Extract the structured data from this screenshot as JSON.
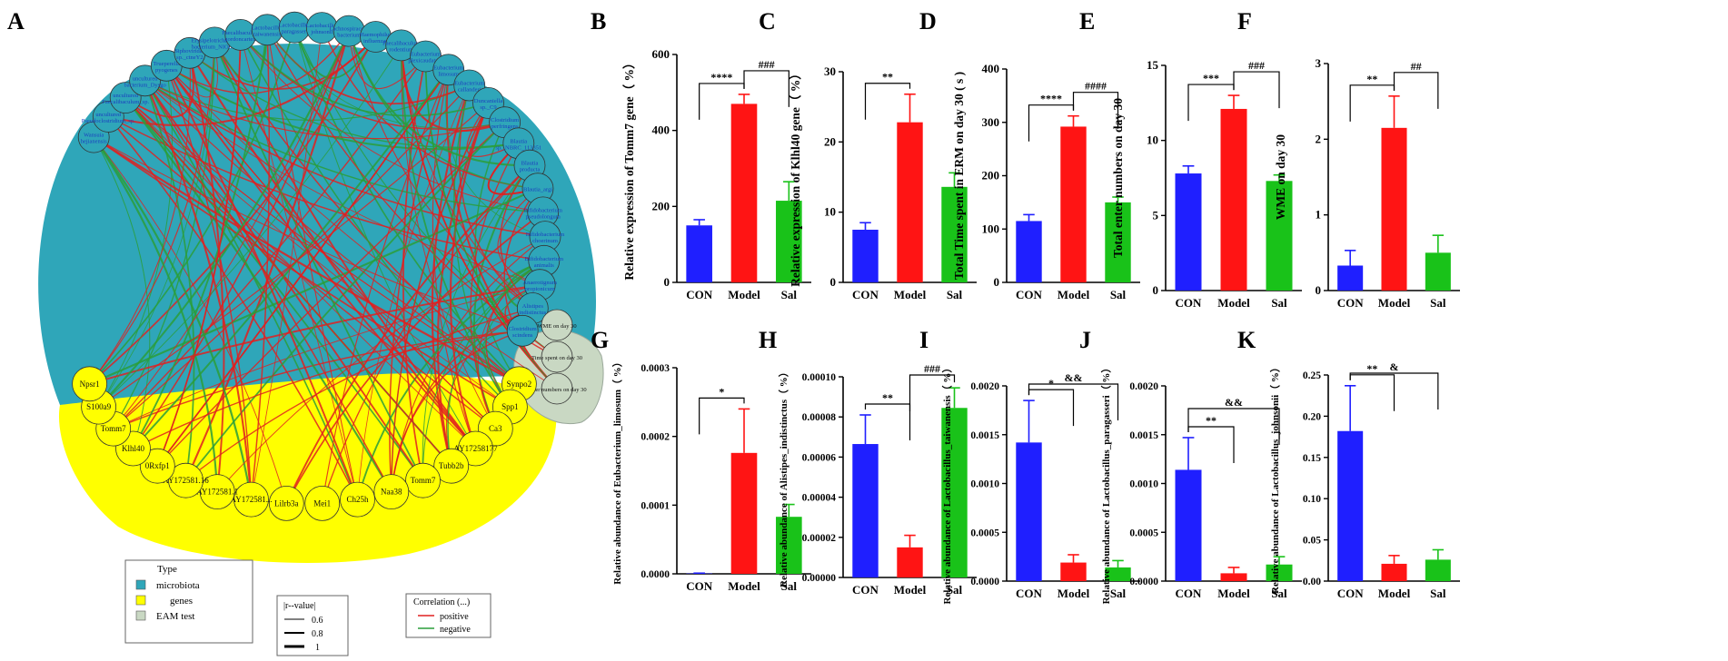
{
  "panel_a": {
    "letter": "A",
    "microbiota_nodes": [
      "Wansuia_hejianensis",
      "uncultured_Pseudoclostridium_sp.",
      "uncultured_Faecalibaculum_sp.",
      "uncultured_bacterium_Dysgo",
      "Trueperella_pyogenes",
      "Siphoviridae_sp._ctneY2",
      "Erysipelotrichaceae_bacterium_NIOo42",
      "Faecalibaculum_gordoncarteri",
      "Lactobacillus_taiwanensis",
      "Lactobacillus_paragasseri",
      "Lactobacillus_johnsonii",
      "Lachnospiraceae_bacterium",
      "Haemophilus_influenzae",
      "Faecalibaculum_rodentium",
      "Eubacterium_plexicaudatum",
      "Eubacterium_limosum",
      "Eubacterium_callanderi",
      "Duncaniella_sp._C9",
      "Clostridium_perfringens",
      "Blautia_sp._NBRC_113351",
      "Blautia_producta",
      "Blautia_argi",
      "Bifidobacterium_pseudolongum",
      "Bifidobacterium_choerinum",
      "Bifidobacterium_animalis",
      "Anaerotignum_propionicum",
      "Alistipes_indistinctus",
      "Clostridium_scindens"
    ],
    "test_nodes": [
      "WME on day 30",
      "Time spent on day 30",
      "Enter numbers on day 30"
    ],
    "gene_nodes": [
      "Synpo2",
      "Spp1",
      "Ca3",
      "AY17258177",
      "Tubb2b",
      "Tomm7",
      "Naa38",
      "Ch25h",
      "Mei1",
      "Lilrb3a",
      "AY172581...",
      "AY172581.1",
      "AY172581.16",
      "0Rxfp1",
      "Klhl40",
      "Tomm7",
      "S100a9",
      "Npsr1"
    ],
    "legend_type": {
      "title": "Type",
      "items": [
        "microbiota",
        "genes",
        "EAM test"
      ],
      "colors": [
        "#2fa6b9",
        "#ffff00",
        "#c9d8c3"
      ]
    },
    "legend_r": {
      "title": "|r--value|",
      "items": [
        "0.6",
        "0.8",
        "1"
      ]
    },
    "legend_corr": {
      "title": "Correlation (...)",
      "items": [
        "positive",
        "negative"
      ],
      "colors": [
        "#e02020",
        "#2a9d3a"
      ]
    }
  },
  "chart_data": [
    {
      "id": "B",
      "type": "bar",
      "categories": [
        "CON",
        "Model",
        "Sal"
      ],
      "values": [
        150,
        470,
        215
      ],
      "errors": [
        15,
        25,
        50
      ],
      "ylabel": "Relative expression of Tomm7 gene（ %）",
      "ylim": [
        0,
        600
      ],
      "yticks": [
        "0",
        "200",
        "400",
        "600"
      ],
      "sig": [
        {
          "from": 0,
          "to": 1,
          "label": "****"
        },
        {
          "from": 1,
          "to": 2,
          "label": "###"
        }
      ]
    },
    {
      "id": "C",
      "type": "bar",
      "categories": [
        "CON",
        "Model",
        "Sal"
      ],
      "values": [
        7.5,
        22.8,
        13.6
      ],
      "errors": [
        1,
        4,
        2
      ],
      "ylabel": "Relative expression of Klhl40 gene（ %）",
      "ylim": [
        0,
        30
      ],
      "yticks": [
        "0",
        "10",
        "20",
        "30"
      ],
      "sig": [
        {
          "from": 0,
          "to": 1,
          "label": "**"
        }
      ]
    },
    {
      "id": "D",
      "type": "bar",
      "categories": [
        "CON",
        "Model",
        "Sal"
      ],
      "values": [
        115,
        292,
        150
      ],
      "errors": [
        12,
        20,
        10
      ],
      "ylabel": "Total Time spent in ERM on day 30 ( s )",
      "ylim": [
        0,
        400
      ],
      "yticks": [
        "0",
        "100",
        "200",
        "300",
        "400"
      ],
      "sig": [
        {
          "from": 0,
          "to": 1,
          "label": "****"
        },
        {
          "from": 1,
          "to": 2,
          "label": "####"
        }
      ]
    },
    {
      "id": "E",
      "type": "bar",
      "categories": [
        "CON",
        "Model",
        "Sal"
      ],
      "values": [
        7.8,
        12.1,
        7.3
      ],
      "errors": [
        0.5,
        0.9,
        0.4
      ],
      "ylabel": "Total enter numbers on day 30",
      "ylim": [
        0,
        15
      ],
      "yticks": [
        "0",
        "5",
        "10",
        "15"
      ],
      "sig": [
        {
          "from": 0,
          "to": 1,
          "label": "***"
        },
        {
          "from": 1,
          "to": 2,
          "label": "###"
        }
      ]
    },
    {
      "id": "F",
      "type": "bar",
      "categories": [
        "CON",
        "Model",
        "Sal"
      ],
      "values": [
        0.33,
        2.15,
        0.5
      ],
      "errors": [
        0.2,
        0.42,
        0.23
      ],
      "ylabel": "WME on day 30",
      "ylim": [
        0,
        3
      ],
      "yticks": [
        "0",
        "1",
        "2",
        "3"
      ],
      "sig": [
        {
          "from": 0,
          "to": 1,
          "label": "**"
        },
        {
          "from": 1,
          "to": 2,
          "label": "##"
        }
      ]
    },
    {
      "id": "G",
      "type": "bar",
      "categories": [
        "CON",
        "Model",
        "Sal"
      ],
      "values": [
        5e-07,
        0.000176,
        8.3e-05
      ],
      "errors": [
        5e-07,
        6.4e-05,
        1.8e-05
      ],
      "ylabel": "Relative abundance of Eubacterium_limosum（ %）",
      "ylim": [
        0,
        0.0003
      ],
      "yticks": [
        "0.0000",
        "0.0001",
        "0.0002",
        "0.0003"
      ],
      "sig": [
        {
          "from": 0,
          "to": 1,
          "label": "*"
        }
      ]
    },
    {
      "id": "H",
      "type": "bar",
      "categories": [
        "CON",
        "Model",
        "Sal"
      ],
      "values": [
        6.65e-05,
        1.5e-05,
        8.45e-05
      ],
      "errors": [
        1.45e-05,
        6e-06,
        1e-05
      ],
      "ylabel": "Relative abundance of Alistipes_indistinctus（ %）",
      "ylim": [
        0,
        0.0001
      ],
      "yticks": [
        "0.00000",
        "0.00002",
        "0.00004",
        "0.00006",
        "0.00008",
        "0.00010"
      ],
      "sig": [
        {
          "from": 0,
          "to": 1,
          "label": "**"
        },
        {
          "from": 1,
          "to": 2,
          "label": "###"
        }
      ]
    },
    {
      "id": "I",
      "type": "bar",
      "categories": [
        "CON",
        "Model",
        "Sal"
      ],
      "values": [
        0.00142,
        0.00019,
        0.00014
      ],
      "errors": [
        0.00043,
        8e-05,
        7e-05
      ],
      "ylabel": "Relative abundance of Lactobacillus_taiwanensis（ %）",
      "ylim": [
        0,
        0.002
      ],
      "yticks": [
        "0.0000",
        "0.0005",
        "0.0010",
        "0.0015",
        "0.0020"
      ],
      "sig": [
        {
          "from": 0,
          "to": 1,
          "label": "*"
        },
        {
          "from": 0,
          "to": 2,
          "label": "&&"
        }
      ]
    },
    {
      "id": "J",
      "type": "bar",
      "categories": [
        "CON",
        "Model",
        "Sal"
      ],
      "values": [
        0.00114,
        8e-05,
        0.00017
      ],
      "errors": [
        0.00033,
        6e-05,
        8e-05
      ],
      "ylabel": "Relative abundance of Lactobacillus_paragasseri（ %）",
      "ylim": [
        0,
        0.002
      ],
      "yticks": [
        "0.0000",
        "0.0005",
        "0.0010",
        "0.0015",
        "0.0020"
      ],
      "sig": [
        {
          "from": 0,
          "to": 1,
          "label": "**"
        },
        {
          "from": 0,
          "to": 2,
          "label": "&&"
        }
      ]
    },
    {
      "id": "K",
      "type": "bar",
      "categories": [
        "CON",
        "Model",
        "Sal"
      ],
      "values": [
        0.182,
        0.021,
        0.026
      ],
      "errors": [
        0.055,
        0.01,
        0.012
      ],
      "ylabel": "Relative abundance of Lactobacillus_johnsonii（ %）",
      "ylim": [
        0,
        0.25
      ],
      "yticks": [
        "0.00",
        "0.05",
        "0.10",
        "0.15",
        "0.20",
        "0.25"
      ],
      "sig": [
        {
          "from": 0,
          "to": 1,
          "label": "**"
        },
        {
          "from": 0,
          "to": 2,
          "label": "&"
        }
      ]
    }
  ],
  "colors": {
    "CON": "#1f1fff",
    "Model": "#ff1414",
    "Sal": "#19c219",
    "text_blue": "#1b3fbf"
  }
}
